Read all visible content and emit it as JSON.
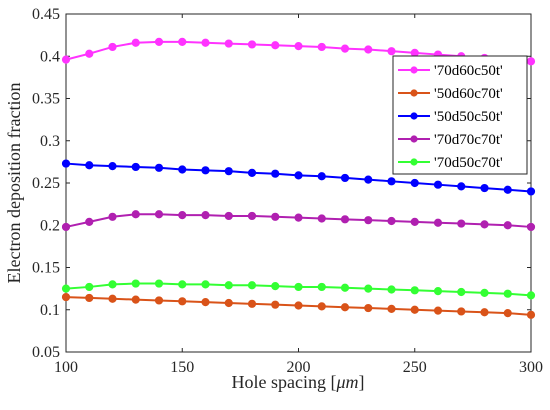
{
  "chart_data": {
    "type": "line",
    "title": "",
    "xlabel": "Hole spacing [",
    "xlabel_unit": "μm",
    "xlabel_close": "]",
    "ylabel": "Electron deposition fraction",
    "xlim": [
      100,
      300
    ],
    "ylim": [
      0.05,
      0.45
    ],
    "xticks": [
      100,
      150,
      200,
      250,
      300
    ],
    "xtick_labels": [
      "100",
      "150",
      "200",
      "250",
      "300"
    ],
    "yticks": [
      0.05,
      0.1,
      0.15,
      0.2,
      0.25,
      0.3,
      0.35,
      0.4,
      0.45
    ],
    "ytick_labels": [
      "0.05",
      "0.1",
      "0.15",
      "0.2",
      "0.25",
      "0.3",
      "0.35",
      "0.4",
      "0.45"
    ],
    "grid": false,
    "legend_position": "top-right",
    "x": [
      100,
      110,
      120,
      130,
      140,
      150,
      160,
      170,
      180,
      190,
      200,
      210,
      220,
      230,
      240,
      250,
      260,
      270,
      280,
      290,
      300
    ],
    "series": [
      {
        "name": "'70d60c50t'",
        "color": "#ff33ff",
        "values": [
          0.396,
          0.403,
          0.411,
          0.416,
          0.417,
          0.417,
          0.416,
          0.415,
          0.414,
          0.413,
          0.412,
          0.411,
          0.409,
          0.408,
          0.406,
          0.404,
          0.402,
          0.4,
          0.398,
          0.396,
          0.394
        ]
      },
      {
        "name": "'50d60c70t'",
        "color": "#d95319",
        "values": [
          0.115,
          0.114,
          0.113,
          0.112,
          0.111,
          0.11,
          0.109,
          0.108,
          0.107,
          0.106,
          0.105,
          0.104,
          0.103,
          0.102,
          0.101,
          0.1,
          0.099,
          0.098,
          0.097,
          0.096,
          0.094
        ]
      },
      {
        "name": "'50d50c50t'",
        "color": "#0000ff",
        "values": [
          0.273,
          0.271,
          0.27,
          0.269,
          0.268,
          0.266,
          0.265,
          0.264,
          0.262,
          0.261,
          0.259,
          0.258,
          0.256,
          0.254,
          0.252,
          0.25,
          0.248,
          0.246,
          0.244,
          0.242,
          0.24
        ]
      },
      {
        "name": "'70d70c70t'",
        "color": "#b020b0",
        "values": [
          0.198,
          0.204,
          0.21,
          0.213,
          0.213,
          0.212,
          0.212,
          0.211,
          0.211,
          0.21,
          0.209,
          0.208,
          0.207,
          0.206,
          0.205,
          0.204,
          0.203,
          0.202,
          0.201,
          0.2,
          0.198
        ]
      },
      {
        "name": "'70d50c70t'",
        "color": "#33ff33",
        "values": [
          0.125,
          0.127,
          0.13,
          0.131,
          0.131,
          0.13,
          0.13,
          0.129,
          0.129,
          0.128,
          0.127,
          0.127,
          0.126,
          0.125,
          0.124,
          0.123,
          0.122,
          0.121,
          0.12,
          0.119,
          0.117
        ]
      }
    ]
  }
}
